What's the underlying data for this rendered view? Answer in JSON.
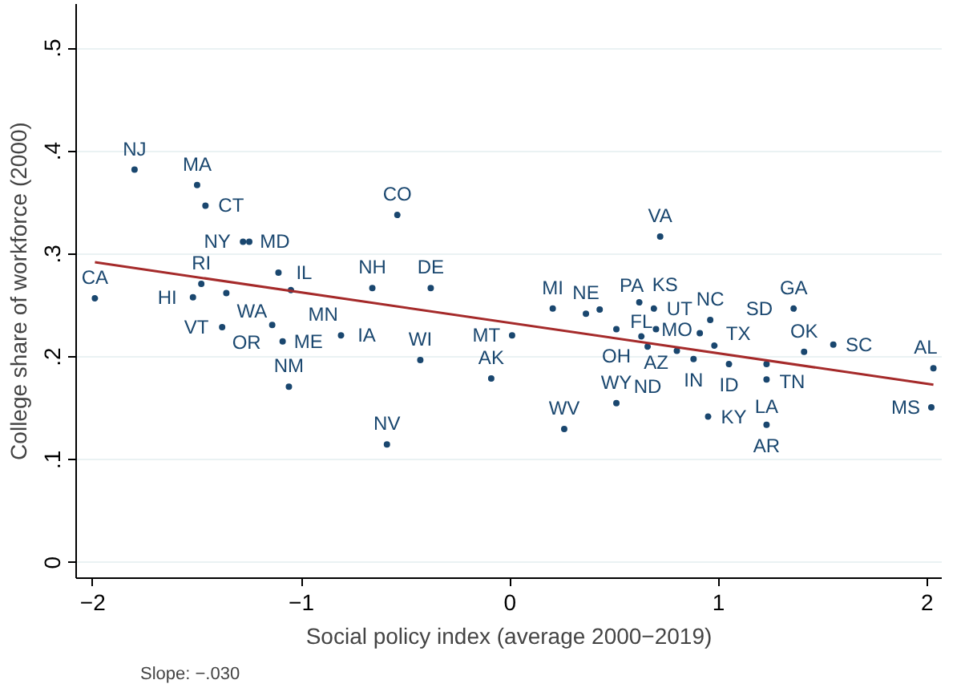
{
  "chart_data": {
    "type": "scatter",
    "xlabel": "Social policy index (average 2000−2019)",
    "ylabel": "College share of workforce (2000)",
    "annotations": [
      "Slope: −.030"
    ],
    "xlim": [
      -2.08,
      2.07
    ],
    "ylim": [
      -0.015,
      0.543
    ],
    "xticks": [
      {
        "value": -2,
        "label": "−2"
      },
      {
        "value": -1,
        "label": "−1"
      },
      0,
      1,
      2
    ],
    "yticks": [
      0,
      {
        "value": 0.1,
        "label": ".1"
      },
      {
        "value": 0.2,
        "label": ".2"
      },
      {
        "value": 0.3,
        "label": ".3"
      },
      {
        "value": 0.4,
        "label": ".4"
      },
      {
        "value": 0.5,
        "label": ".5"
      }
    ],
    "grid": "y",
    "series": [
      {
        "color": "#1a476f",
        "marker": "circle",
        "x": [
          -1.8,
          -1.5,
          -1.46,
          -1.28,
          -1.25,
          -0.54,
          -1.99,
          -1.11,
          -1.48,
          -1.52,
          -1.36,
          -1.05,
          -0.66,
          -0.38,
          -1.38,
          -1.14,
          -1.09,
          -0.81,
          -0.43,
          -1.06,
          -0.59,
          0.72,
          0.205,
          0.364,
          0.43,
          0.62,
          0.69,
          0.01,
          0.51,
          0.7,
          0.63,
          0.66,
          0.8,
          0.96,
          0.91,
          0.88,
          0.98,
          1.05,
          1.23,
          1.23,
          1.36,
          1.41,
          1.55,
          2.03,
          2.02,
          -0.09,
          0.51,
          0.26,
          0.95,
          1.23
        ],
        "values": [
          0.382,
          0.367,
          0.347,
          0.312,
          0.312,
          0.338,
          0.257,
          0.282,
          0.271,
          0.258,
          0.262,
          0.265,
          0.267,
          0.267,
          0.229,
          0.231,
          0.215,
          0.221,
          0.197,
          0.171,
          0.115,
          0.317,
          0.247,
          0.242,
          0.246,
          0.253,
          0.247,
          0.221,
          0.227,
          0.227,
          0.22,
          0.21,
          0.206,
          0.236,
          0.223,
          0.198,
          0.211,
          0.193,
          0.193,
          0.178,
          0.247,
          0.205,
          0.212,
          0.189,
          0.151,
          0.179,
          0.155,
          0.13,
          0.142,
          0.134
        ],
        "value_labels": [
          "NJ",
          "MA",
          "CT",
          "NY",
          "MD",
          "CO",
          "CA",
          "IL",
          "RI",
          "HI",
          "WA",
          "MN",
          "NH",
          "DE",
          "VT",
          "OR",
          "ME",
          "IA",
          "WI",
          "NM",
          "NV",
          "VA",
          "MI",
          "NE",
          "PA",
          "KS",
          "UT",
          "MT",
          "OH",
          "AZ",
          "FL",
          "ND",
          "MO",
          "NC",
          "TX",
          "IN",
          "SD",
          "ID",
          "TN",
          "LA",
          "GA",
          "OK",
          "SC",
          "AL",
          "MS",
          "AK",
          "WY",
          "WV",
          "KY",
          "AR"
        ]
      },
      {
        "type": "line",
        "color": "#a52a2a",
        "line_style": "solid",
        "marker": "none",
        "x": [
          -1.99,
          2.03
        ],
        "values": [
          0.292,
          0.173
        ]
      }
    ]
  }
}
